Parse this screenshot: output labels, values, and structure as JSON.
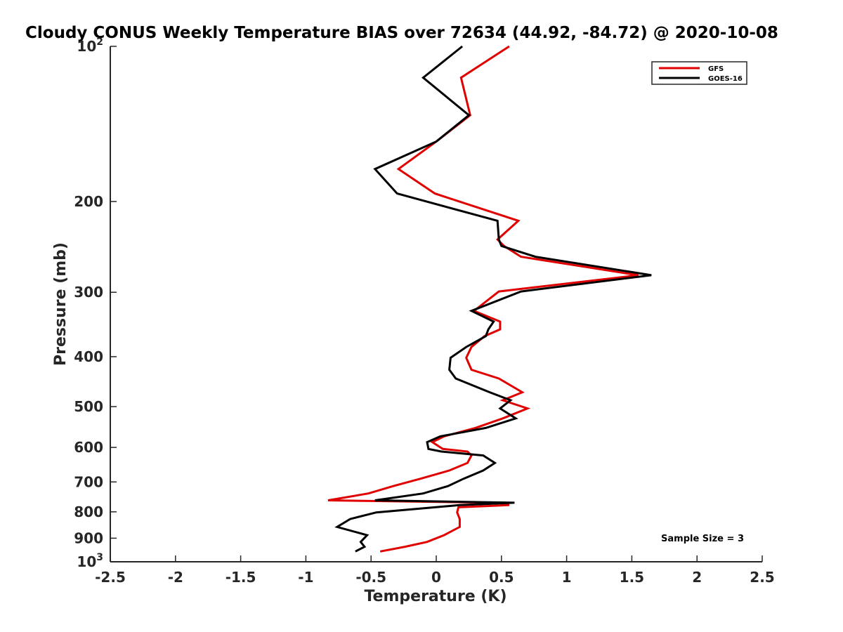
{
  "chart_data": {
    "type": "line",
    "title": "Cloudy CONUS Weekly Temperature BIAS over 72634 (44.92, -84.72) @ 2020-10-08",
    "xlabel": "Temperature (K)",
    "ylabel": "Pressure (mb)",
    "xlim": [
      -2.5,
      2.5
    ],
    "ylim": [
      100,
      1000
    ],
    "y_scale": "log",
    "y_reversed": true,
    "grid": false,
    "legend_position": "top-right",
    "x_ticks": [
      -2.5,
      -2,
      -1.5,
      -1,
      -0.5,
      0,
      0.5,
      1,
      1.5,
      2,
      2.5
    ],
    "x_tick_labels": [
      "-2.5",
      "-2",
      "-1.5",
      "-1",
      "-0.5",
      "0",
      "0.5",
      "1",
      "1.5",
      "2",
      "2.5"
    ],
    "y_ticks": [
      100,
      200,
      300,
      400,
      500,
      600,
      700,
      800,
      900,
      1000
    ],
    "y_tick_labels": [
      {
        "base": "10",
        "exp": "2"
      },
      {
        "base": "200",
        "exp": ""
      },
      {
        "base": "300",
        "exp": ""
      },
      {
        "base": "400",
        "exp": ""
      },
      {
        "base": "500",
        "exp": ""
      },
      {
        "base": "600",
        "exp": ""
      },
      {
        "base": "700",
        "exp": ""
      },
      {
        "base": "800",
        "exp": ""
      },
      {
        "base": "900",
        "exp": ""
      },
      {
        "base": "10",
        "exp": "3"
      }
    ],
    "annotation": "Sample Size = 3",
    "series": [
      {
        "name": "GFS",
        "color": "#e00000",
        "x": [
          0.56,
          0.19,
          0.26,
          0.0,
          -0.29,
          -0.01,
          0.63,
          0.47,
          0.52,
          0.65,
          1.55,
          0.48,
          0.29,
          0.49,
          0.49,
          0.37,
          0.27,
          0.23,
          0.27,
          0.48,
          0.66,
          0.51,
          0.7,
          0.51,
          0.3,
          0.06,
          -0.03,
          0.05,
          0.24,
          0.27,
          0.24,
          0.1,
          -0.12,
          -0.33,
          -0.52,
          -0.83,
          0.48,
          0.56,
          0.17,
          0.16,
          0.18,
          0.18,
          0.06,
          -0.07,
          -0.24,
          -0.43
        ],
        "y": [
          100,
          115,
          136,
          153,
          173,
          193,
          218,
          237,
          244,
          256,
          278,
          299,
          326,
          342,
          354,
          365,
          383,
          402,
          424,
          441,
          469,
          486,
          504,
          527,
          550,
          571,
          586,
          604,
          611,
          622,
          643,
          665,
          690,
          713,
          737,
          760,
          768,
          776,
          784,
          802,
          826,
          856,
          888,
          915,
          935,
          955
        ]
      },
      {
        "name": "GOES-16",
        "color": "#000000",
        "x": [
          0.2,
          -0.1,
          0.25,
          0.0,
          -0.47,
          -0.3,
          0.47,
          0.48,
          0.5,
          0.76,
          1.65,
          0.65,
          0.27,
          0.44,
          0.4,
          0.38,
          0.23,
          0.11,
          0.1,
          0.15,
          0.41,
          0.57,
          0.49,
          0.61,
          0.38,
          0.03,
          -0.07,
          -0.06,
          0.04,
          0.36,
          0.45,
          0.36,
          0.21,
          0.09,
          -0.1,
          -0.47,
          0.6,
          0.18,
          -0.01,
          -0.46,
          -0.66,
          -0.76,
          -0.53,
          -0.58,
          -0.55,
          -0.62
        ],
        "y": [
          100,
          115,
          136,
          153,
          173,
          193,
          218,
          237,
          244,
          256,
          278,
          299,
          326,
          342,
          354,
          365,
          383,
          402,
          424,
          441,
          469,
          486,
          504,
          527,
          550,
          571,
          586,
          604,
          611,
          622,
          643,
          665,
          690,
          713,
          737,
          760,
          768,
          776,
          784,
          802,
          826,
          856,
          888,
          915,
          935,
          955
        ]
      }
    ]
  }
}
